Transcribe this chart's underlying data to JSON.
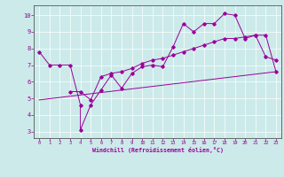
{
  "xlabel": "Windchill (Refroidissement éolien,°C)",
  "background_color": "#cceaea",
  "line_color": "#990099",
  "xlim": [
    -0.5,
    23.5
  ],
  "ylim": [
    2.6,
    10.6
  ],
  "yticks": [
    3,
    4,
    5,
    6,
    7,
    8,
    9,
    10
  ],
  "xticks": [
    0,
    1,
    2,
    3,
    4,
    5,
    6,
    7,
    8,
    9,
    10,
    11,
    12,
    13,
    14,
    15,
    16,
    17,
    18,
    19,
    20,
    21,
    22,
    23
  ],
  "series1_x": [
    0,
    1,
    2,
    3,
    4,
    4,
    5,
    6,
    7,
    8,
    9,
    10,
    11,
    12,
    13,
    14,
    15,
    16,
    17,
    18,
    19,
    20,
    21,
    22,
    23
  ],
  "series1_y": [
    7.8,
    7.0,
    7.0,
    7.0,
    4.6,
    3.1,
    4.6,
    5.5,
    6.4,
    5.6,
    6.5,
    6.9,
    7.0,
    6.9,
    8.1,
    9.5,
    9.0,
    9.5,
    9.5,
    10.1,
    10.0,
    8.6,
    8.8,
    7.5,
    7.3
  ],
  "series2_x": [
    3,
    4,
    5,
    6,
    7,
    8,
    9,
    10,
    11,
    12,
    13,
    14,
    15,
    16,
    17,
    18,
    19,
    20,
    21,
    22,
    23
  ],
  "series2_y": [
    5.4,
    5.4,
    4.9,
    6.3,
    6.5,
    6.6,
    6.8,
    7.1,
    7.3,
    7.4,
    7.6,
    7.8,
    8.0,
    8.2,
    8.4,
    8.6,
    8.6,
    8.7,
    8.8,
    8.8,
    6.6
  ],
  "series3_x": [
    0,
    23
  ],
  "series3_y": [
    4.9,
    6.6
  ]
}
